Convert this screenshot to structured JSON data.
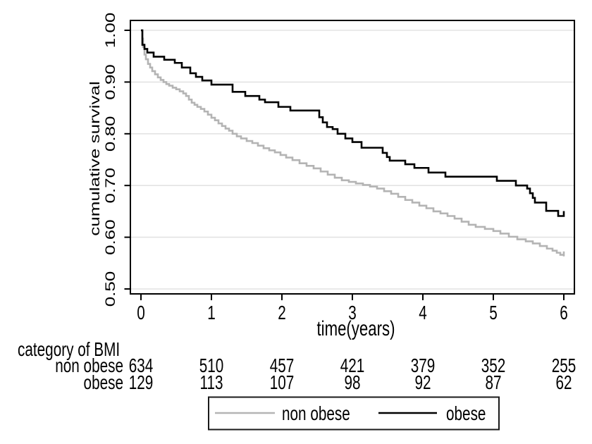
{
  "figure": {
    "background": "#ffffff",
    "frame_color": "#000000",
    "grid_color": "#e3e3e3",
    "text_color": "#000000"
  },
  "chart_data": {
    "type": "line",
    "subtype": "kaplan-meier-step-survival",
    "title": "",
    "xlabel": "time(years)",
    "ylabel": "cumulative survival",
    "xlim": [
      0,
      6
    ],
    "ylim": [
      0.5,
      1.0
    ],
    "x_ticks": [
      0,
      1,
      2,
      3,
      4,
      5,
      6
    ],
    "y_ticks": [
      {
        "v": 0.5,
        "label": "0.50"
      },
      {
        "v": 0.6,
        "label": "0.60"
      },
      {
        "v": 0.7,
        "label": "0.70"
      },
      {
        "v": 0.8,
        "label": "0.80"
      },
      {
        "v": 0.9,
        "label": "0.90"
      },
      {
        "v": 1.0,
        "label": "1.00"
      }
    ],
    "grid": "horizontal",
    "legend_position": "bottom-center-boxed",
    "series": [
      {
        "name": "non obese",
        "color": "#b4b4b4",
        "points": [
          [
            0,
            1.0
          ],
          [
            0.02,
            0.984
          ],
          [
            0.03,
            0.968
          ],
          [
            0.05,
            0.953
          ],
          [
            0.07,
            0.944
          ],
          [
            0.1,
            0.935
          ],
          [
            0.13,
            0.928
          ],
          [
            0.16,
            0.921
          ],
          [
            0.2,
            0.915
          ],
          [
            0.24,
            0.909
          ],
          [
            0.28,
            0.904
          ],
          [
            0.32,
            0.9
          ],
          [
            0.36,
            0.896
          ],
          [
            0.4,
            0.893
          ],
          [
            0.45,
            0.889
          ],
          [
            0.5,
            0.886
          ],
          [
            0.55,
            0.882
          ],
          [
            0.6,
            0.878
          ],
          [
            0.64,
            0.873
          ],
          [
            0.68,
            0.866
          ],
          [
            0.72,
            0.86
          ],
          [
            0.76,
            0.856
          ],
          [
            0.8,
            0.852
          ],
          [
            0.85,
            0.848
          ],
          [
            0.9,
            0.843
          ],
          [
            0.95,
            0.837
          ],
          [
            1.0,
            0.831
          ],
          [
            1.05,
            0.826
          ],
          [
            1.1,
            0.82
          ],
          [
            1.15,
            0.815
          ],
          [
            1.2,
            0.81
          ],
          [
            1.25,
            0.806
          ],
          [
            1.3,
            0.8
          ],
          [
            1.36,
            0.795
          ],
          [
            1.42,
            0.791
          ],
          [
            1.5,
            0.786
          ],
          [
            1.58,
            0.782
          ],
          [
            1.66,
            0.777
          ],
          [
            1.74,
            0.772
          ],
          [
            1.82,
            0.768
          ],
          [
            1.9,
            0.764
          ],
          [
            1.98,
            0.759
          ],
          [
            2.06,
            0.754
          ],
          [
            2.15,
            0.749
          ],
          [
            2.25,
            0.743
          ],
          [
            2.35,
            0.738
          ],
          [
            2.45,
            0.733
          ],
          [
            2.55,
            0.727
          ],
          [
            2.65,
            0.721
          ],
          [
            2.75,
            0.715
          ],
          [
            2.85,
            0.71
          ],
          [
            2.95,
            0.707
          ],
          [
            3.05,
            0.704
          ],
          [
            3.15,
            0.701
          ],
          [
            3.25,
            0.698
          ],
          [
            3.35,
            0.694
          ],
          [
            3.45,
            0.689
          ],
          [
            3.55,
            0.684
          ],
          [
            3.65,
            0.678
          ],
          [
            3.75,
            0.672
          ],
          [
            3.85,
            0.667
          ],
          [
            3.95,
            0.661
          ],
          [
            4.05,
            0.656
          ],
          [
            4.15,
            0.65
          ],
          [
            4.25,
            0.646
          ],
          [
            4.35,
            0.641
          ],
          [
            4.45,
            0.636
          ],
          [
            4.55,
            0.63
          ],
          [
            4.65,
            0.624
          ],
          [
            4.75,
            0.62
          ],
          [
            4.88,
            0.616
          ],
          [
            5.0,
            0.612
          ],
          [
            5.1,
            0.607
          ],
          [
            5.22,
            0.601
          ],
          [
            5.34,
            0.596
          ],
          [
            5.46,
            0.592
          ],
          [
            5.56,
            0.588
          ],
          [
            5.66,
            0.583
          ],
          [
            5.76,
            0.578
          ],
          [
            5.84,
            0.574
          ],
          [
            5.9,
            0.57
          ],
          [
            5.95,
            0.566
          ],
          [
            6.0,
            0.563
          ]
        ]
      },
      {
        "name": "obese",
        "color": "#000000",
        "points": [
          [
            0,
            1.0
          ],
          [
            0.02,
            0.972
          ],
          [
            0.05,
            0.964
          ],
          [
            0.09,
            0.957
          ],
          [
            0.18,
            0.949
          ],
          [
            0.33,
            0.943
          ],
          [
            0.48,
            0.937
          ],
          [
            0.58,
            0.928
          ],
          [
            0.7,
            0.917
          ],
          [
            0.78,
            0.91
          ],
          [
            0.87,
            0.903
          ],
          [
            1.0,
            0.895
          ],
          [
            1.3,
            0.881
          ],
          [
            1.48,
            0.873
          ],
          [
            1.68,
            0.866
          ],
          [
            1.76,
            0.861
          ],
          [
            1.95,
            0.852
          ],
          [
            2.12,
            0.845
          ],
          [
            2.53,
            0.832
          ],
          [
            2.58,
            0.822
          ],
          [
            2.64,
            0.813
          ],
          [
            2.72,
            0.809
          ],
          [
            2.79,
            0.8
          ],
          [
            2.9,
            0.791
          ],
          [
            3.0,
            0.784
          ],
          [
            3.13,
            0.773
          ],
          [
            3.43,
            0.763
          ],
          [
            3.49,
            0.755
          ],
          [
            3.53,
            0.748
          ],
          [
            3.75,
            0.741
          ],
          [
            3.88,
            0.734
          ],
          [
            4.08,
            0.725
          ],
          [
            4.32,
            0.717
          ],
          [
            5.05,
            0.709
          ],
          [
            5.32,
            0.7
          ],
          [
            5.48,
            0.694
          ],
          [
            5.52,
            0.685
          ],
          [
            5.56,
            0.676
          ],
          [
            5.59,
            0.667
          ],
          [
            5.75,
            0.651
          ],
          [
            5.92,
            0.641
          ],
          [
            6.0,
            0.641
          ]
        ]
      }
    ]
  },
  "risk_table": {
    "title": "category of BMI",
    "time_points": [
      0,
      1,
      2,
      3,
      4,
      5,
      6
    ],
    "rows": [
      {
        "label": "non obese",
        "counts": [
          634,
          510,
          457,
          421,
          379,
          352,
          255
        ]
      },
      {
        "label": "obese",
        "counts": [
          129,
          113,
          107,
          98,
          92,
          87,
          62
        ]
      }
    ]
  },
  "legend": {
    "items": [
      {
        "label": "non obese",
        "color": "#b4b4b4"
      },
      {
        "label": "obese",
        "color": "#000000"
      }
    ]
  }
}
